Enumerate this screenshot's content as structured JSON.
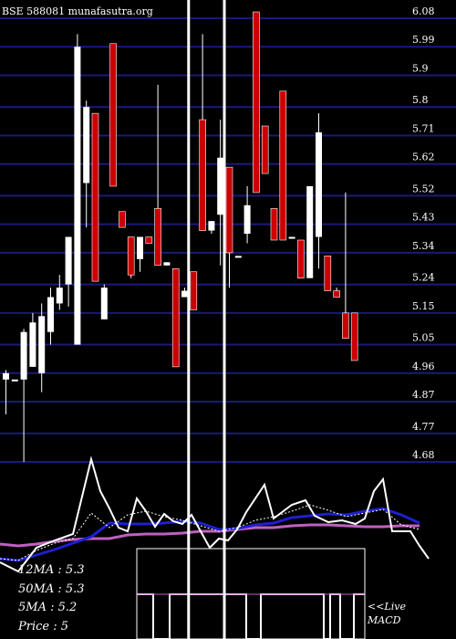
{
  "header": {
    "title": "BSE 588081 munafasutra.org"
  },
  "colors": {
    "up": "#ffffff",
    "down": "#cc0000",
    "grid": "#1a1a7a",
    "ma_short": "#1f1fd0",
    "ma_long": "#c060c0",
    "background": "#000000"
  },
  "chart_data": {
    "type": "candlestick",
    "y_ticks": [
      6.08,
      5.99,
      5.9,
      5.8,
      5.71,
      5.62,
      5.52,
      5.43,
      5.34,
      5.24,
      5.15,
      5.05,
      4.96,
      4.87,
      4.77,
      4.68
    ],
    "ylim": [
      4.68,
      6.08
    ],
    "candles": [
      {
        "o": 4.94,
        "h": 4.97,
        "l": 4.83,
        "c": 4.96
      },
      {
        "o": 4.94,
        "h": 4.94,
        "l": 4.94,
        "c": 4.94
      },
      {
        "o": 4.94,
        "h": 5.1,
        "l": 4.68,
        "c": 5.09
      },
      {
        "o": 4.98,
        "h": 5.15,
        "l": 4.98,
        "c": 5.12
      },
      {
        "o": 4.96,
        "h": 5.18,
        "l": 4.9,
        "c": 5.14
      },
      {
        "o": 5.09,
        "h": 5.23,
        "l": 5.05,
        "c": 5.2
      },
      {
        "o": 5.18,
        "h": 5.27,
        "l": 5.16,
        "c": 5.23
      },
      {
        "o": 5.24,
        "h": 5.39,
        "l": 5.17,
        "c": 5.39
      },
      {
        "o": 5.05,
        "h": 6.03,
        "l": 5.05,
        "c": 5.99
      },
      {
        "o": 5.56,
        "h": 5.82,
        "l": 5.42,
        "c": 5.8
      },
      {
        "o": 5.78,
        "h": 5.78,
        "l": 5.25,
        "c": 5.25
      },
      {
        "o": 5.13,
        "h": 5.24,
        "l": 5.13,
        "c": 5.23
      },
      {
        "o": 6.0,
        "h": 6.0,
        "l": 5.55,
        "c": 5.55
      },
      {
        "o": 5.47,
        "h": 5.47,
        "l": 5.42,
        "c": 5.42
      },
      {
        "o": 5.39,
        "h": 5.39,
        "l": 5.26,
        "c": 5.27
      },
      {
        "o": 5.32,
        "h": 5.39,
        "l": 5.28,
        "c": 5.39
      },
      {
        "o": 5.39,
        "h": 5.39,
        "l": 5.37,
        "c": 5.37
      },
      {
        "o": 5.48,
        "h": 5.87,
        "l": 5.3,
        "c": 5.3
      },
      {
        "o": 5.3,
        "h": 5.31,
        "l": 5.3,
        "c": 5.31
      },
      {
        "o": 5.29,
        "h": 5.29,
        "l": 4.98,
        "c": 4.98
      },
      {
        "o": 5.2,
        "h": 5.23,
        "l": 5.2,
        "c": 5.22
      },
      {
        "o": 5.28,
        "h": 5.28,
        "l": 5.16,
        "c": 5.16
      },
      {
        "o": 5.76,
        "h": 6.03,
        "l": 5.41,
        "c": 5.41
      },
      {
        "o": 5.41,
        "h": 5.44,
        "l": 5.4,
        "c": 5.44
      },
      {
        "o": 5.46,
        "h": 5.76,
        "l": 5.3,
        "c": 5.64
      },
      {
        "o": 5.61,
        "h": 5.61,
        "l": 5.23,
        "c": 5.34
      },
      {
        "o": 5.33,
        "h": 5.33,
        "l": 5.33,
        "c": 5.33
      },
      {
        "o": 5.4,
        "h": 5.55,
        "l": 5.37,
        "c": 5.49
      },
      {
        "o": 6.1,
        "h": 6.1,
        "l": 5.53,
        "c": 5.53
      },
      {
        "o": 5.74,
        "h": 5.74,
        "l": 5.59,
        "c": 5.59
      },
      {
        "o": 5.48,
        "h": 5.48,
        "l": 5.38,
        "c": 5.38
      },
      {
        "o": 5.85,
        "h": 5.85,
        "l": 5.38,
        "c": 5.38
      },
      {
        "o": 5.39,
        "h": 5.39,
        "l": 5.39,
        "c": 5.39
      },
      {
        "o": 5.38,
        "h": 5.38,
        "l": 5.26,
        "c": 5.26
      },
      {
        "o": 5.26,
        "h": 5.55,
        "l": 5.26,
        "c": 5.55
      },
      {
        "o": 5.39,
        "h": 5.78,
        "l": 5.29,
        "c": 5.72
      },
      {
        "o": 5.33,
        "h": 5.33,
        "l": 5.22,
        "c": 5.22
      },
      {
        "o": 5.22,
        "h": 5.23,
        "l": 5.2,
        "c": 5.2
      },
      {
        "o": 5.15,
        "h": 5.53,
        "l": 5.07,
        "c": 5.07
      },
      {
        "o": 5.15,
        "h": 5.15,
        "l": 5.0,
        "c": 5.0
      }
    ],
    "vertical_markers": [
      23.5,
      27.5
    ]
  },
  "indicators": {
    "ma12": "12MA : 5.3",
    "ma50": "50MA : 5.3",
    "ma5": "5MA : 5.2",
    "price": "Price   : 5",
    "macd_label": "<<Live",
    "macd_label2": "MACD"
  }
}
